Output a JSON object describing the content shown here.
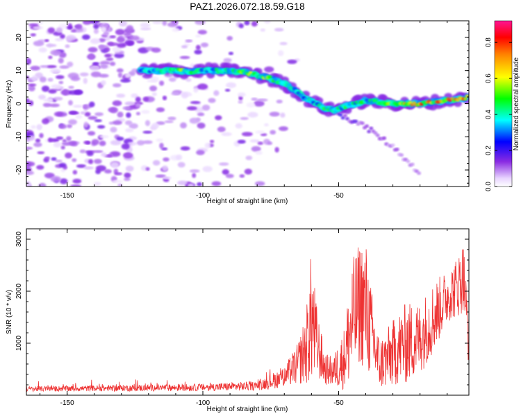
{
  "title": "PAZ1.2026.072.18.59.G18",
  "chart_data": [
    {
      "type": "heatmap",
      "name": "spectrogram",
      "xlabel": "Height of straight line (km)",
      "ylabel": "Frequency (Hz)",
      "xlim": [
        -165,
        -2
      ],
      "ylim": [
        -25,
        25
      ],
      "xticks": [
        -150,
        -100,
        -50
      ],
      "xtick_labels": [
        "-150",
        "-100",
        "-50"
      ],
      "yticks": [
        20,
        10,
        0,
        -10,
        -20
      ],
      "ytick_labels": [
        "20",
        "10",
        "0",
        "-10",
        "-20"
      ],
      "colorbar": {
        "label": "Normalized spectral amplitude",
        "range": [
          0,
          0.92
        ],
        "ticks": [
          0.0,
          0.2,
          0.4,
          0.6,
          0.8
        ],
        "tick_labels": [
          "0.0",
          "0.2",
          "0.4",
          "0.6",
          "0.8"
        ],
        "colors": [
          "#ffffff",
          "#e8d4ff",
          "#8a2be2",
          "#0000ff",
          "#00ffff",
          "#00ff00",
          "#ffff00",
          "#ff8000",
          "#ff0000",
          "#ff1493"
        ]
      },
      "ridge": {
        "height_km": [
          -123,
          -115,
          -110,
          -105,
          -100,
          -95,
          -90,
          -85,
          -80,
          -75,
          -70,
          -66,
          -62,
          -58,
          -55,
          -52,
          -48,
          -44,
          -40,
          -35,
          -30,
          -25,
          -20,
          -15,
          -10,
          -5,
          -2
        ],
        "frequency_hz": [
          10,
          10,
          10.2,
          9.5,
          10,
          10,
          10,
          9.5,
          8.5,
          7.5,
          6,
          4,
          1.5,
          0,
          -1.5,
          -2,
          -1,
          0,
          1,
          0.5,
          0,
          0,
          0,
          0.5,
          1,
          1.5,
          2
        ],
        "amplitude": [
          0.35,
          0.5,
          0.62,
          0.5,
          0.45,
          0.5,
          0.55,
          0.55,
          0.6,
          0.6,
          0.5,
          0.45,
          0.45,
          0.45,
          0.5,
          0.45,
          0.5,
          0.5,
          0.5,
          0.55,
          0.6,
          0.7,
          0.8,
          0.75,
          0.85,
          0.9,
          0.7
        ]
      },
      "secondary_branch": {
        "height_km": [
          -50,
          -45,
          -40,
          -35,
          -30,
          -25,
          -20
        ],
        "frequency_hz": [
          -3,
          -5,
          -7,
          -10,
          -13,
          -17,
          -21
        ],
        "amplitude": [
          0.2,
          0.18,
          0.15,
          0.15,
          0.12,
          0.1,
          0.1
        ]
      }
    },
    {
      "type": "line",
      "name": "snr",
      "xlabel": "Height of straight line (km)",
      "ylabel": "SNR (10 * v/v)",
      "xlim": [
        -165,
        -2
      ],
      "ylim": [
        0,
        3200
      ],
      "xticks": [
        -150,
        -100,
        -50
      ],
      "xtick_labels": [
        "-150",
        "-100",
        "-50"
      ],
      "yticks": [
        1000,
        2000,
        3000
      ],
      "ytick_labels": [
        "1000",
        "2000",
        "3000"
      ],
      "color": "#ee3333",
      "envelope": {
        "x": [
          -165,
          -100,
          -80,
          -70,
          -65,
          -62,
          -60,
          -58,
          -55,
          -52,
          -48,
          -45,
          -42,
          -40,
          -38,
          -35,
          -32,
          -28,
          -25,
          -20,
          -15,
          -10,
          -6,
          -4,
          -2
        ],
        "mean": [
          120,
          150,
          180,
          350,
          600,
          900,
          1500,
          1000,
          500,
          450,
          700,
          1400,
          1800,
          1700,
          1200,
          600,
          700,
          900,
          1000,
          1100,
          1500,
          1900,
          2100,
          2300,
          1000
        ],
        "spread": [
          50,
          70,
          90,
          200,
          400,
          700,
          1300,
          700,
          300,
          300,
          600,
          1200,
          1200,
          1300,
          900,
          500,
          600,
          700,
          800,
          700,
          700,
          500,
          600,
          700,
          500
        ]
      }
    }
  ]
}
